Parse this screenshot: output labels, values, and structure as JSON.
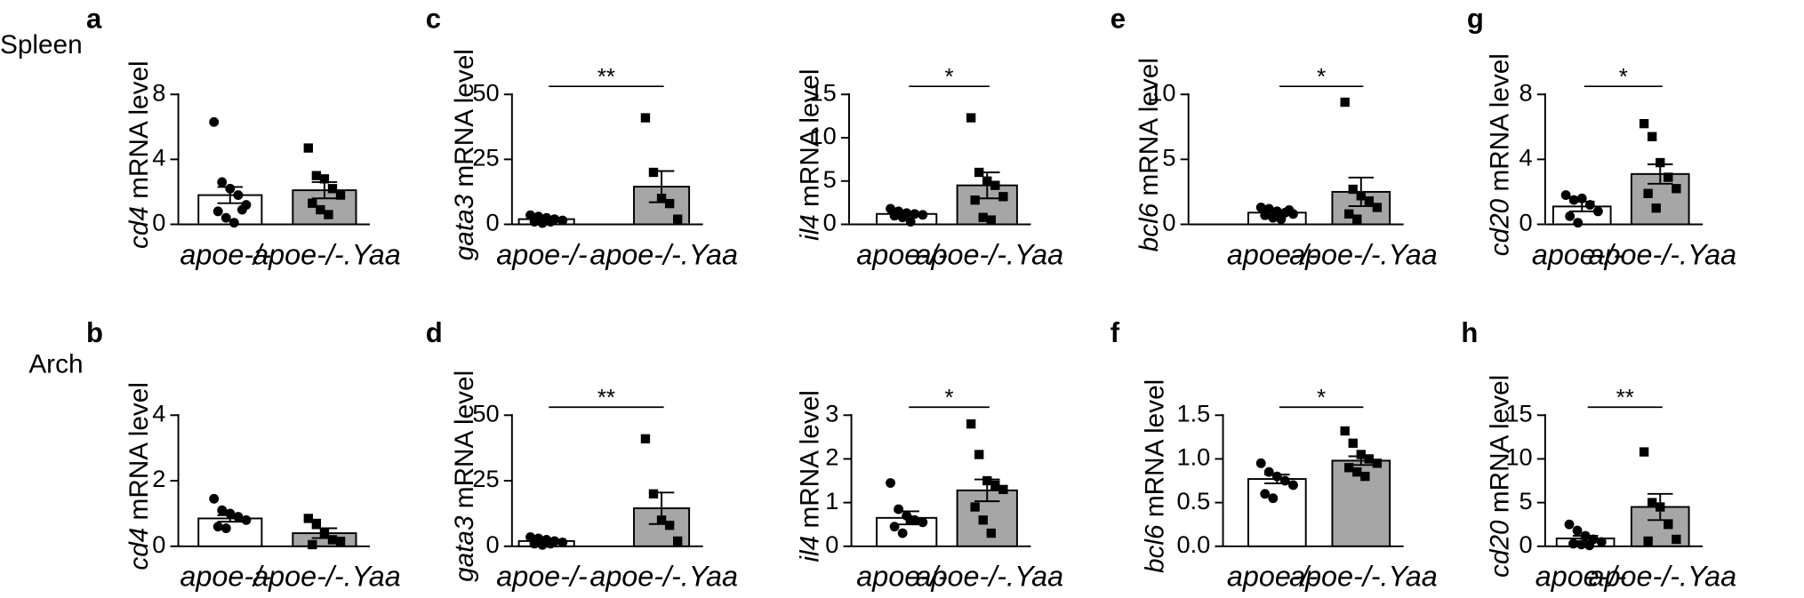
{
  "row_labels": [
    "Spleen",
    "Arch"
  ],
  "panel_labels": [
    "a",
    "c",
    "e",
    "g",
    "b",
    "d",
    "f",
    "h"
  ],
  "chart_data": [
    {
      "type": "bar",
      "y_label": "cd4 mRNA level",
      "categories": [
        "apoe-/-",
        "apoe-/-.Yaa"
      ],
      "colors": [
        "#ffffff",
        "#a6a6a6"
      ],
      "values": [
        1.8,
        2.1
      ],
      "errors": [
        0.5,
        0.5
      ],
      "points": [
        [
          6.3,
          2.6,
          2.2,
          1.8,
          1.2,
          0.8,
          0.4,
          0.1,
          0.9
        ],
        [
          4.7,
          3.0,
          2.8,
          2.2,
          1.8,
          1.3,
          0.9,
          0.6
        ]
      ],
      "ylim": [
        0,
        8
      ],
      "yticks": [
        0,
        4,
        8
      ]
    },
    {
      "type": "bar",
      "y_label": "gata3 mRNA level",
      "categories": [
        "apoe-/-",
        "apoe-/-.Yaa"
      ],
      "colors": [
        "#ffffff",
        "#a6a6a6"
      ],
      "values": [
        2,
        14.5
      ],
      "errors": [
        0.5,
        6
      ],
      "points": [
        [
          3.5,
          3,
          2.5,
          2,
          1.5,
          1,
          0.5,
          1
        ],
        [
          41,
          20,
          10,
          8,
          2
        ]
      ],
      "ylim": [
        0,
        50
      ],
      "yticks": [
        0,
        25,
        50
      ],
      "annotation": "**"
    },
    {
      "type": "bar",
      "y_label": "il4 mRNA level",
      "categories": [
        "apoe-/-",
        "apoe-/-.Yaa"
      ],
      "colors": [
        "#ffffff",
        "#a6a6a6"
      ],
      "values": [
        1.2,
        4.5
      ],
      "errors": [
        0.2,
        1.5
      ],
      "points": [
        [
          1.8,
          1.5,
          1.3,
          1.2,
          1.1,
          1.0,
          0.8,
          0.3
        ],
        [
          12.3,
          6,
          5,
          4.5,
          3.2,
          2.8,
          0.8,
          0.5
        ]
      ],
      "ylim": [
        0,
        15
      ],
      "yticks": [
        0,
        5,
        10,
        15
      ],
      "annotation": "*"
    },
    {
      "type": "bar",
      "y_label": "bcl6 mRNA level",
      "categories": [
        "apoe-/-",
        "apoe-/-.Yaa"
      ],
      "colors": [
        "#ffffff",
        "#a6a6a6"
      ],
      "values": [
        0.9,
        2.5
      ],
      "errors": [
        0.15,
        1.1
      ],
      "points": [
        [
          1.3,
          1.2,
          1.0,
          0.9,
          0.8,
          0.7,
          0.5,
          0.4,
          1.1
        ],
        [
          9.4,
          2.7,
          2.2,
          1.8,
          1.3,
          0.8,
          0.4
        ]
      ],
      "ylim": [
        0,
        10
      ],
      "yticks": [
        0,
        5,
        10
      ],
      "annotation": "*"
    },
    {
      "type": "bar",
      "y_label": "cd20 mRNA level",
      "categories": [
        "apoe-/-",
        "apoe-/-.Yaa"
      ],
      "colors": [
        "#ffffff",
        "#a6a6a6"
      ],
      "values": [
        1.1,
        3.1
      ],
      "errors": [
        0.3,
        0.6
      ],
      "points": [
        [
          1.8,
          1.5,
          1.6,
          1.2,
          0.8,
          0.5,
          0.1
        ],
        [
          6.2,
          5.4,
          3.8,
          2.9,
          2.2,
          1.9,
          1.0
        ]
      ],
      "ylim": [
        0,
        8
      ],
      "yticks": [
        0,
        4,
        8
      ],
      "annotation": "*"
    },
    {
      "type": "bar",
      "y_label": "cd4 mRNA level",
      "categories": [
        "apoe-/-",
        "apoe-/-.Yaa"
      ],
      "colors": [
        "#ffffff",
        "#a6a6a6"
      ],
      "values": [
        0.85,
        0.4
      ],
      "errors": [
        0.1,
        0.15
      ],
      "points": [
        [
          1.45,
          1.1,
          1.0,
          0.9,
          0.8,
          0.6,
          0.55
        ],
        [
          0.85,
          0.7,
          0.4,
          0.2,
          0.15,
          0.05
        ]
      ],
      "ylim": [
        0,
        4
      ],
      "yticks": [
        0,
        2,
        4
      ]
    },
    {
      "type": "bar",
      "y_label": "gata3 mRNA level",
      "categories": [
        "apoe-/-",
        "apoe-/-.Yaa"
      ],
      "colors": [
        "#ffffff",
        "#a6a6a6"
      ],
      "values": [
        2,
        14.5
      ],
      "errors": [
        0.5,
        6
      ],
      "points": [
        [
          3.5,
          3,
          2.5,
          2,
          1.5,
          1,
          0.5,
          1
        ],
        [
          41,
          20,
          10,
          8,
          2
        ]
      ],
      "ylim": [
        0,
        50
      ],
      "yticks": [
        0,
        25,
        50
      ],
      "annotation": "**"
    },
    {
      "type": "bar",
      "y_label": "il4 mRNA level",
      "categories": [
        "apoe-/-",
        "apoe-/-.Yaa"
      ],
      "colors": [
        "#ffffff",
        "#a6a6a6"
      ],
      "values": [
        0.65,
        1.28
      ],
      "errors": [
        0.15,
        0.25
      ],
      "points": [
        [
          1.45,
          0.85,
          0.7,
          0.6,
          0.55,
          0.45,
          0.3,
          0.6
        ],
        [
          2.8,
          2.1,
          1.5,
          1.4,
          1.3,
          0.9,
          0.6,
          0.3
        ]
      ],
      "ylim": [
        0,
        3
      ],
      "yticks": [
        0,
        1,
        2,
        3
      ],
      "annotation": "*"
    },
    {
      "type": "bar",
      "y_label": "bcl6 mRNA level",
      "categories": [
        "apoe-/-",
        "apoe-/-.Yaa"
      ],
      "colors": [
        "#ffffff",
        "#a6a6a6"
      ],
      "values": [
        0.77,
        0.98
      ],
      "errors": [
        0.05,
        0.05
      ],
      "points": [
        [
          0.95,
          0.85,
          0.8,
          0.75,
          0.7,
          0.6,
          0.55
        ],
        [
          1.32,
          1.18,
          1.05,
          1.0,
          0.95,
          0.9,
          0.85,
          0.8
        ]
      ],
      "ylim": [
        0,
        1.5
      ],
      "yticks": [
        {
          "value": 0,
          "label": "0.0"
        },
        0.5,
        {
          "value": 1,
          "label": "1.0"
        },
        1.5
      ],
      "annotation": "*"
    },
    {
      "type": "bar",
      "y_label": "cd20 mRNA level",
      "categories": [
        "apoe-/-",
        "apoe-/-.Yaa"
      ],
      "colors": [
        "#ffffff",
        "#a6a6a6"
      ],
      "values": [
        0.9,
        4.5
      ],
      "errors": [
        0.3,
        1.5
      ],
      "points": [
        [
          2.5,
          1.8,
          1.2,
          0.8,
          0.5,
          0.3,
          0.2,
          0.1
        ],
        [
          10.8,
          5,
          4.5,
          2.5,
          0.8,
          0.6
        ]
      ],
      "ylim": [
        0,
        15
      ],
      "yticks": [
        0,
        5,
        10,
        15
      ],
      "annotation": "**"
    }
  ]
}
